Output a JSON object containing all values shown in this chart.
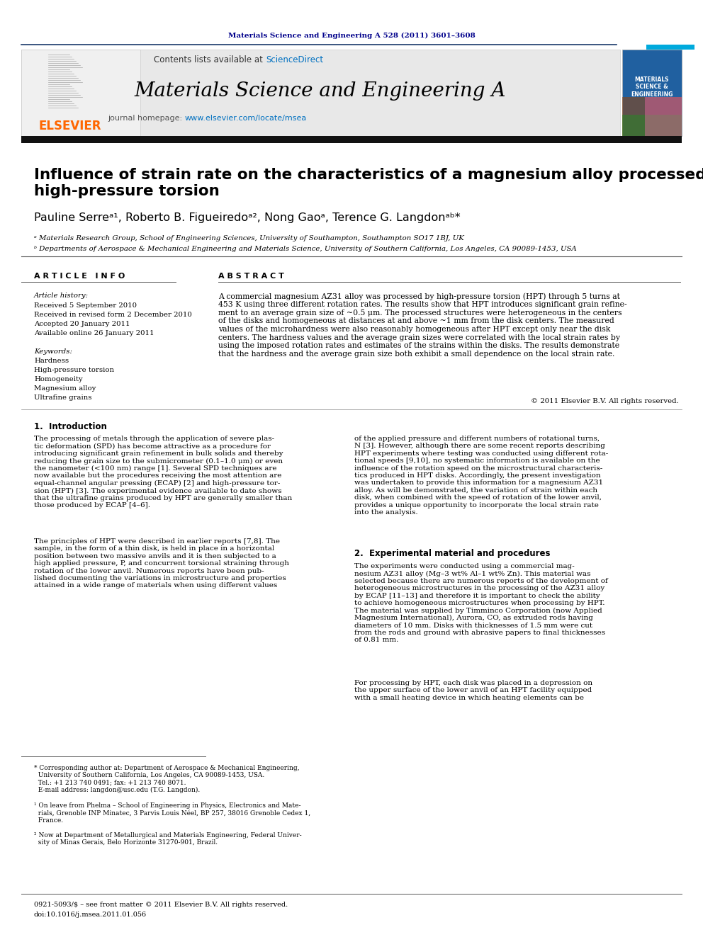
{
  "page_bg": "#ffffff",
  "top_journal_ref": "Materials Science and Engineering A 528 (2011) 3601–3608",
  "top_journal_color": "#00008B",
  "header_bg": "#E8E8E8",
  "header_contents": "Contents lists available at",
  "header_sciencedirect": "ScienceDirect",
  "header_sciencedirect_color": "#0070C0",
  "journal_name": "Materials Science and Engineering A",
  "journal_homepage_label": "journal homepage:",
  "journal_url": "www.elsevier.com/locate/msea",
  "journal_url_color": "#0070C0",
  "elsevier_color": "#FF6600",
  "title": "Influence of strain rate on the characteristics of a magnesium alloy processed by\nhigh-pressure torsion",
  "authors": "Pauline Serreᵃ¹, Roberto B. Figueiredoᵃ², Nong Gaoᵃ, Terence G. Langdonᵃᵇ*",
  "affil_a": "ᵃ Materials Research Group, School of Engineering Sciences, University of Southampton, Southampton SO17 1BJ, UK",
  "affil_b": "ᵇ Departments of Aerospace & Mechanical Engineering and Materials Science, University of Southern California, Los Angeles, CA 90089-1453, USA",
  "article_info_title": "A R T I C L E   I N F O",
  "abstract_title": "A B S T R A C T",
  "article_history_label": "Article history:",
  "received": "Received 5 September 2010",
  "received_revised": "Received in revised form 2 December 2010",
  "accepted": "Accepted 20 January 2011",
  "available": "Available online 26 January 2011",
  "keywords_label": "Keywords:",
  "keyword1": "Hardness",
  "keyword2": "High-pressure torsion",
  "keyword3": "Homogeneity",
  "keyword4": "Magnesium alloy",
  "keyword5": "Ultrafine grains",
  "abstract_text": "A commercial magnesium AZ31 alloy was processed by high-pressure torsion (HPT) through 5 turns at\n453 K using three different rotation rates. The results show that HPT introduces significant grain refine-\nment to an average grain size of ~0.5 μm. The processed structures were heterogeneous in the centers\nof the disks and homogeneous at distances at and above ~1 mm from the disk centers. The measured\nvalues of the microhardness were also reasonably homogeneous after HPT except only near the disk\ncenters. The hardness values and the average grain sizes were correlated with the local strain rates by\nusing the imposed rotation rates and estimates of the strains within the disks. The results demonstrate\nthat the hardness and the average grain size both exhibit a small dependence on the local strain rate.",
  "abstract_copyright": "© 2011 Elsevier B.V. All rights reserved.",
  "section1_title": "1.  Introduction",
  "section1_col1_p1": "The processing of metals through the application of severe plas-\ntic deformation (SPD) has become attractive as a procedure for\nintroducing significant grain refinement in bulk solids and thereby\nreducing the grain size to the submicrometer (0.1–1.0 μm) or even\nthe nanometer (<100 nm) range [1]. Several SPD techniques are\nnow available but the procedures receiving the most attention are\nequal-channel angular pressing (ECAP) [2] and high-pressure tor-\nsion (HPT) [3]. The experimental evidence available to date shows\nthat the ultrafine grains produced by HPT are generally smaller than\nthose produced by ECAP [4–6].",
  "section1_col1_p2": "The principles of HPT were described in earlier reports [7,8]. The\nsample, in the form of a thin disk, is held in place in a horizontal\nposition between two massive anvils and it is then subjected to a\nhigh applied pressure, P, and concurrent torsional straining through\nrotation of the lower anvil. Numerous reports have been pub-\nlished documenting the variations in microstructure and properties\nattained in a wide range of materials when using different values",
  "section1_col2_p1": "of the applied pressure and different numbers of rotational turns,\nN [3]. However, although there are some recent reports describing\nHPT experiments where testing was conducted using different rota-\ntional speeds [9,10], no systematic information is available on the\ninfluence of the rotation speed on the microstructural characteris-\ntics produced in HPT disks. Accordingly, the present investigation\nwas undertaken to provide this information for a magnesium AZ31\nalloy. As will be demonstrated, the variation of strain within each\ndisk, when combined with the speed of rotation of the lower anvil,\nprovides a unique opportunity to incorporate the local strain rate\ninto the analysis.",
  "section2_title": "2.  Experimental material and procedures",
  "section2_col2_p1": "The experiments were conducted using a commercial mag-\nnesium AZ31 alloy (Mg–3 wt% Al–1 wt% Zn). This material was\nselected because there are numerous reports of the development of\nheterogeneous microstructures in the processing of the AZ31 alloy\nby ECAP [11–13] and therefore it is important to check the ability\nto achieve homogeneous microstructures when processing by HPT.\nThe material was supplied by Timminco Corporation (now Applied\nMagnesium International), Aurora, CO, as extruded rods having\ndiameters of 10 mm. Disks with thicknesses of 1.5 mm were cut\nfrom the rods and ground with abrasive papers to final thicknesses\nof 0.81 mm.",
  "section2_col2_p2": "For processing by HPT, each disk was placed in a depression on\nthe upper surface of the lower anvil of an HPT facility equipped\nwith a small heating device in which heating elements can be",
  "footnote_star": "* Corresponding author at: Department of Aerospace & Mechanical Engineering,\n  University of Southern California, Los Angeles, CA 90089-1453, USA.\n  Tel.: +1 213 740 0491; fax: +1 213 740 8071.\n  E-mail address: langdon@usc.edu (T.G. Langdon).",
  "footnote_1": "¹ On leave from Phelma – School of Engineering in Physics, Electronics and Mate-\n  rials, Grenoble INP Minatec, 3 Parvis Louis Néel, BP 257, 38016 Grenoble Cedex 1,\n  France.",
  "footnote_2": "² Now at Department of Metallurgical and Materials Engineering, Federal Univer-\n  sity of Minas Gerais, Belo Horizonte 31270-901, Brazil.",
  "bottom_text1": "0921-5093/$ – see front matter © 2011 Elsevier B.V. All rights reserved.",
  "bottom_text2": "doi:10.1016/j.msea.2011.01.056"
}
